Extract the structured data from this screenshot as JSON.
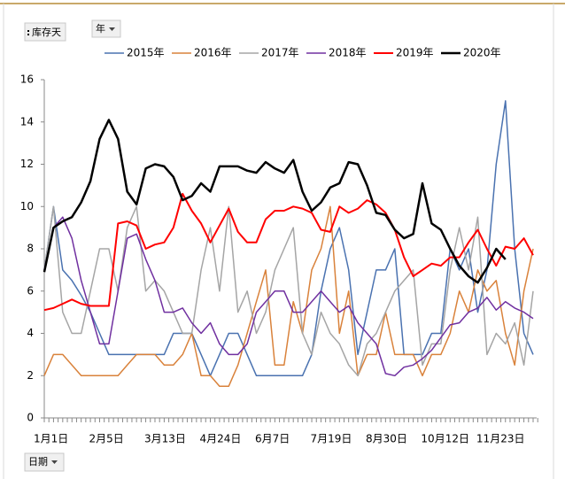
{
  "filters": {
    "value_field": "库存天",
    "series_field": "年",
    "axis_field": "日期"
  },
  "chart_data": {
    "type": "line",
    "categories": [
      "1月1日",
      null,
      null,
      null,
      null,
      null,
      "2月5日",
      null,
      null,
      null,
      null,
      null,
      "3月13日",
      null,
      null,
      null,
      null,
      null,
      "4月24日",
      null,
      null,
      null,
      null,
      null,
      "6月7日",
      null,
      null,
      null,
      null,
      null,
      "7月19日",
      null,
      null,
      null,
      null,
      null,
      "8月30日",
      null,
      null,
      null,
      null,
      null,
      "10月12日",
      null,
      null,
      null,
      null,
      null,
      "11月23日",
      null,
      null,
      null,
      null,
      null
    ],
    "ylim": [
      0,
      16
    ],
    "yticks": [
      0,
      2,
      4,
      6,
      8,
      10,
      12,
      14,
      16
    ],
    "grid": false,
    "legend": "top",
    "series": [
      {
        "name": "2015年",
        "color": "#4a72b0",
        "width": 1.5,
        "values": [
          7.0,
          10.0,
          7.0,
          6.5,
          5.8,
          5.0,
          4.0,
          3.0,
          3.0,
          3.0,
          3.0,
          3.0,
          3.0,
          3.0,
          4.0,
          4.0,
          4.0,
          3.0,
          2.0,
          3.0,
          4.0,
          4.0,
          3.0,
          2.0,
          2.0,
          2.0,
          2.0,
          2.0,
          2.0,
          3.0,
          6.0,
          8.0,
          9.0,
          7.0,
          3.0,
          5.0,
          7.0,
          7.0,
          8.0,
          3.0,
          3.0,
          3.0,
          4.0,
          4.0,
          8.0,
          7.0,
          8.0,
          5.0,
          7.0,
          12.0,
          15.0,
          8.0,
          4.0,
          3.0
        ]
      },
      {
        "name": "2016年",
        "color": "#d9823b",
        "width": 1.5,
        "values": [
          2.0,
          3.0,
          3.0,
          2.5,
          2.0,
          2.0,
          2.0,
          2.0,
          2.0,
          2.5,
          3.0,
          3.0,
          3.0,
          2.5,
          2.5,
          3.0,
          4.0,
          2.0,
          2.0,
          1.5,
          1.5,
          2.5,
          4.0,
          5.5,
          7.0,
          2.5,
          2.5,
          5.5,
          4.0,
          7.0,
          8.0,
          10.0,
          4.0,
          6.0,
          2.0,
          3.0,
          3.0,
          5.0,
          3.0,
          3.0,
          3.0,
          2.0,
          3.0,
          3.0,
          4.0,
          6.0,
          5.0,
          7.0,
          6.0,
          6.5,
          4.0,
          2.5,
          6.0,
          8.0
        ]
      },
      {
        "name": "2017年",
        "color": "#a5a5a5",
        "width": 1.5,
        "values": [
          7.0,
          10.0,
          5.0,
          4.0,
          4.0,
          6.0,
          8.0,
          8.0,
          6.0,
          9.0,
          10.0,
          6.0,
          6.5,
          6.0,
          5.0,
          4.0,
          4.0,
          7.0,
          9.0,
          6.0,
          10.0,
          5.0,
          6.0,
          4.0,
          5.0,
          7.0,
          8.0,
          9.0,
          4.0,
          3.0,
          5.0,
          4.0,
          3.5,
          2.5,
          2.0,
          3.5,
          4.0,
          5.0,
          6.0,
          6.5,
          7.0,
          2.5,
          3.5,
          3.5,
          7.0,
          9.0,
          7.0,
          9.5,
          3.0,
          4.0,
          3.5,
          4.5,
          2.5,
          6.0
        ]
      },
      {
        "name": "2018年",
        "color": "#7030a0",
        "width": 1.5,
        "values": [
          7.0,
          9.0,
          9.5,
          8.5,
          6.5,
          5.0,
          3.5,
          3.5,
          6.0,
          8.5,
          8.7,
          7.5,
          6.5,
          5.0,
          5.0,
          5.2,
          4.5,
          4.0,
          4.5,
          3.5,
          3.0,
          3.0,
          3.5,
          5.0,
          5.5,
          6.0,
          6.0,
          5.0,
          5.0,
          5.5,
          6.0,
          5.5,
          5.0,
          5.3,
          4.5,
          4.0,
          3.5,
          2.1,
          2.0,
          2.4,
          2.5,
          2.8,
          3.2,
          3.8,
          4.4,
          4.5,
          5.0,
          5.2,
          5.7,
          5.1,
          5.5,
          5.2,
          5.0,
          4.7
        ]
      },
      {
        "name": "2019年",
        "color": "#ff0000",
        "width": 2,
        "values": [
          5.1,
          5.2,
          5.4,
          5.6,
          5.4,
          5.3,
          5.3,
          5.3,
          9.2,
          9.3,
          9.1,
          8.0,
          8.2,
          8.3,
          9.0,
          10.6,
          9.8,
          9.2,
          8.3,
          9.1,
          9.9,
          8.8,
          8.3,
          8.3,
          9.4,
          9.8,
          9.8,
          10.0,
          9.9,
          9.7,
          8.9,
          8.8,
          10.0,
          9.7,
          9.9,
          10.3,
          10.1,
          9.7,
          8.9,
          7.6,
          6.7,
          7.0,
          7.3,
          7.2,
          7.6,
          7.6,
          8.3,
          8.9,
          8.0,
          7.2,
          8.1,
          8.0,
          8.5,
          7.7
        ]
      },
      {
        "name": "2020年",
        "color": "#000000",
        "width": 2.5,
        "values": [
          6.9,
          9.0,
          9.3,
          9.5,
          10.2,
          11.2,
          13.2,
          14.1,
          13.2,
          10.7,
          10.1,
          11.8,
          12.0,
          11.9,
          11.4,
          10.3,
          10.5,
          11.1,
          10.7,
          11.9,
          11.9,
          11.9,
          11.7,
          11.6,
          12.1,
          11.8,
          11.6,
          12.2,
          10.7,
          9.8,
          10.2,
          10.9,
          11.1,
          12.1,
          12.0,
          11.0,
          9.7,
          9.6,
          8.9,
          8.5,
          8.7,
          11.1,
          9.2,
          8.9,
          8.0,
          7.2,
          6.7,
          6.4,
          7.1,
          8.0,
          7.5,
          null,
          null,
          null
        ]
      }
    ]
  }
}
